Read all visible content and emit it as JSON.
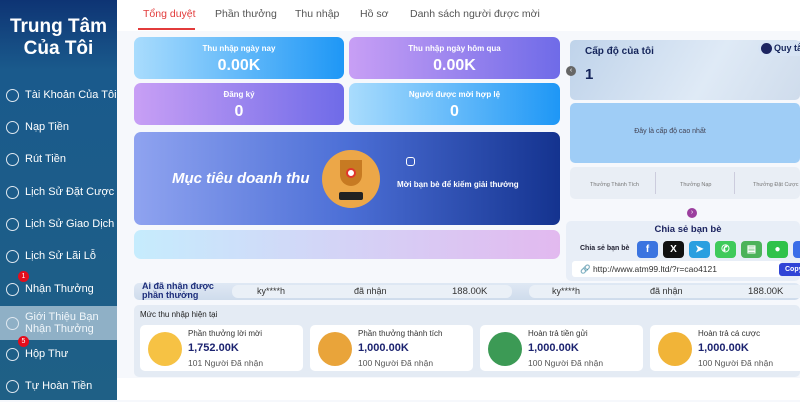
{
  "sidebar": {
    "title": "Trung Tâm Của Tôi",
    "items": [
      {
        "label": "Tài Khoản Của Tôi",
        "icon": "user-icon"
      },
      {
        "label": "Nạp Tiền",
        "icon": "deposit-icon"
      },
      {
        "label": "Rút Tiền",
        "icon": "withdraw-icon"
      },
      {
        "label": "Lịch Sử Đặt Cược",
        "icon": "clipboard-icon"
      },
      {
        "label": "Lịch Sử Giao Dịch",
        "icon": "transaction-icon"
      },
      {
        "label": "Lịch Sử Lãi Lỗ",
        "icon": "list-icon"
      },
      {
        "label": "Nhận Thưởng",
        "icon": "reward-icon",
        "badge": "1"
      },
      {
        "label": "Giới Thiệu Bạn Nhận Thưởng",
        "icon": "referral-icon",
        "active": true
      },
      {
        "label": "Hộp Thư",
        "icon": "mail-icon",
        "badge": "5"
      },
      {
        "label": "Tự Hoàn Tiền",
        "icon": "rebate-icon"
      }
    ]
  },
  "tabs": [
    "Tổng duyệt",
    "Phần thưởng",
    "Thu nhập",
    "Hồ sơ",
    "Danh sách người được mời"
  ],
  "stats": [
    {
      "label": "Thu nhập ngày nay",
      "value": "0.00K"
    },
    {
      "label": "Thu nhập ngày hôm qua",
      "value": "0.00K"
    },
    {
      "label": "Đăng ký",
      "value": "0"
    },
    {
      "label": "Người được mời hợp lệ",
      "value": "0"
    }
  ],
  "banner": {
    "title": "Mục tiêu doanh thu",
    "text": "Mời bạn bè để kiếm giải thưởng"
  },
  "level": {
    "title": "Cấp độ của tôi",
    "value": "1",
    "rules": "Quy tắc",
    "max_text": "Đây là cấp độ cao nhất",
    "tabs": [
      "Thưởng Thành Tích",
      "Thưởng Nạp",
      "Thưởng Đặt Cược"
    ]
  },
  "share": {
    "title": "Chia sẻ bạn bè",
    "label": "Chia sẻ bạn bè",
    "link": "http://www.atm99.ltd/?r=cao4121",
    "copy": "Copy",
    "buttons": [
      {
        "name": "facebook",
        "glyph": "f",
        "color": "#3b74e0"
      },
      {
        "name": "x",
        "glyph": "X",
        "color": "#111111"
      },
      {
        "name": "telegram",
        "glyph": "➤",
        "color": "#2a9fe0"
      },
      {
        "name": "whatsapp",
        "glyph": "✆",
        "color": "#3fca5a"
      },
      {
        "name": "sms",
        "glyph": "▤",
        "color": "#4cb35a"
      },
      {
        "name": "line",
        "glyph": "●",
        "color": "#2fc24a"
      },
      {
        "name": "more",
        "glyph": "↗",
        "color": "#3a6de8"
      }
    ]
  },
  "ticker": {
    "title": "Ai đã nhận được phần thưởng",
    "entries": [
      {
        "user": "ky****h",
        "action": "đã nhận",
        "amount": "188.00K"
      },
      {
        "user": "ky****h",
        "action": "đã nhận",
        "amount": "188.00K"
      }
    ]
  },
  "income": {
    "title": "Mức thu nhập hiện tại",
    "items": [
      {
        "title": "Phần thưởng lời mời",
        "value": "1,752.00K",
        "count": "101 Người Đã nhận",
        "color": "#f6c244"
      },
      {
        "title": "Phần thưởng thành tích",
        "value": "1,000.00K",
        "count": "100 Người Đã nhận",
        "color": "#e9a43a"
      },
      {
        "title": "Hoàn trả tiền gửi",
        "value": "1,000.00K",
        "count": "100 Người Đã nhận",
        "color": "#3c9a55"
      },
      {
        "title": "Hoàn trả cá cược",
        "value": "1,000.00K",
        "count": "100 Người Đã nhận",
        "color": "#f1b438"
      }
    ]
  }
}
